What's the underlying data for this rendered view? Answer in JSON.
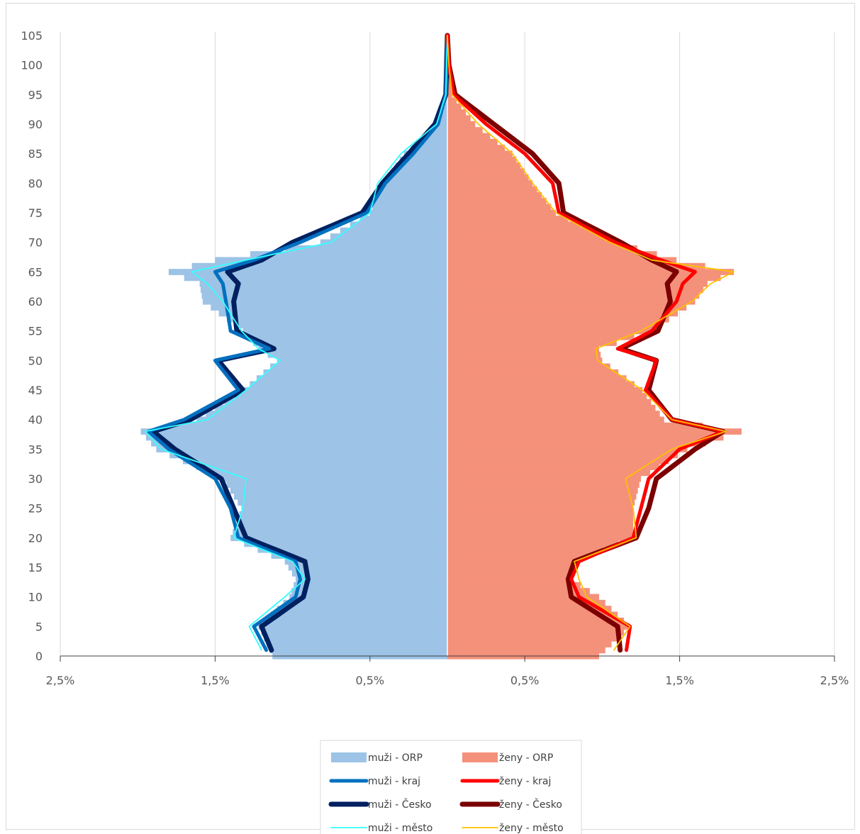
{
  "chart_data": {
    "type": "population-pyramid",
    "title": "",
    "xlabel": "",
    "ylabel": "",
    "xlim": [
      -2.5,
      2.5
    ],
    "ylim": [
      0,
      105
    ],
    "x_ticks": [
      -2.5,
      -1.5,
      -0.5,
      0.5,
      1.5,
      2.5
    ],
    "x_tick_labels": [
      "2,5%",
      "1,5%",
      "0,5%",
      "0,5%",
      "1,5%",
      "2,5%"
    ],
    "y_ticks": [
      0,
      5,
      10,
      15,
      20,
      25,
      30,
      35,
      40,
      45,
      50,
      55,
      60,
      65,
      70,
      75,
      80,
      85,
      90,
      95,
      100,
      105
    ],
    "y_tick_labels": [
      "0",
      "5",
      "10",
      "15",
      "20",
      "25",
      "30",
      "35",
      "40",
      "45",
      "50",
      "55",
      "60",
      "65",
      "70",
      "75",
      "80",
      "85",
      "90",
      "95",
      "100",
      "105"
    ],
    "grid": "vertical",
    "legend_placement": "bottom",
    "age_knots": [
      0,
      5,
      10,
      13,
      16,
      20,
      25,
      30,
      35,
      38,
      40,
      45,
      50,
      52,
      55,
      60,
      63,
      65,
      67,
      70,
      75,
      80,
      85,
      90,
      95,
      100,
      105
    ],
    "series": [
      {
        "name": "muži - ORP",
        "side": "left",
        "kind": "bar",
        "color": "#9dc3e6",
        "values": [
          1.13,
          1.22,
          1.02,
          0.98,
          1.05,
          1.4,
          1.33,
          1.45,
          1.88,
          1.98,
          1.62,
          1.32,
          1.1,
          1.22,
          1.32,
          1.58,
          1.6,
          1.8,
          1.5,
          0.82,
          0.5,
          0.42,
          0.28,
          0.07,
          0.01,
          0.005,
          0.0
        ]
      },
      {
        "name": "muži - kraj",
        "side": "left",
        "kind": "line",
        "color": "#0070c0",
        "values": [
          1.15,
          1.25,
          0.98,
          0.95,
          0.98,
          1.35,
          1.4,
          1.5,
          1.8,
          1.93,
          1.7,
          1.35,
          1.5,
          1.15,
          1.4,
          1.43,
          1.45,
          1.5,
          1.25,
          0.95,
          0.52,
          0.4,
          0.22,
          0.06,
          0.01,
          0.005,
          0.0
        ]
      },
      {
        "name": "muži - Česko",
        "side": "left",
        "kind": "line",
        "color": "#002060",
        "values": [
          1.12,
          1.2,
          0.93,
          0.9,
          0.92,
          1.3,
          1.38,
          1.46,
          1.76,
          1.9,
          1.66,
          1.32,
          1.48,
          1.12,
          1.36,
          1.38,
          1.35,
          1.42,
          1.2,
          1.0,
          0.55,
          0.42,
          0.25,
          0.08,
          0.01,
          0.005,
          0.0
        ]
      },
      {
        "name": "muži - město",
        "side": "left",
        "kind": "line",
        "color": "#33ffff",
        "values": [
          1.18,
          1.28,
          1.05,
          0.92,
          1.0,
          1.38,
          1.32,
          1.3,
          1.85,
          1.95,
          1.55,
          1.3,
          1.08,
          1.22,
          1.33,
          1.45,
          1.55,
          1.65,
          1.3,
          0.75,
          0.5,
          0.45,
          0.3,
          0.07,
          0.01,
          0.005,
          0.0
        ]
      },
      {
        "name": "ženy - ORP",
        "side": "right",
        "kind": "bar",
        "color": "#f4917b",
        "values": [
          0.98,
          1.18,
          0.98,
          0.8,
          0.82,
          1.2,
          1.2,
          1.25,
          1.55,
          1.9,
          1.4,
          1.26,
          1.0,
          0.98,
          1.32,
          1.6,
          1.68,
          1.85,
          1.48,
          1.1,
          0.7,
          0.55,
          0.42,
          0.18,
          0.03,
          0.01,
          0.0
        ]
      },
      {
        "name": "ženy - kraj",
        "side": "right",
        "kind": "line",
        "color": "#ff0000",
        "values": [
          1.15,
          1.18,
          0.85,
          0.8,
          0.85,
          1.2,
          1.25,
          1.3,
          1.5,
          1.78,
          1.45,
          1.28,
          1.35,
          1.1,
          1.32,
          1.48,
          1.52,
          1.6,
          1.38,
          1.08,
          0.72,
          0.68,
          0.5,
          0.25,
          0.04,
          0.01,
          0.0
        ]
      },
      {
        "name": "ženy - Česko",
        "side": "right",
        "kind": "line",
        "color": "#7b0000",
        "values": [
          1.12,
          1.1,
          0.8,
          0.78,
          0.82,
          1.22,
          1.3,
          1.35,
          1.6,
          1.78,
          1.45,
          1.3,
          1.35,
          1.12,
          1.36,
          1.44,
          1.42,
          1.48,
          1.32,
          1.12,
          0.75,
          0.72,
          0.55,
          0.3,
          0.05,
          0.01,
          0.0
        ]
      },
      {
        "name": "ženy - město",
        "side": "right",
        "kind": "line",
        "color": "#ffc000",
        "values": [
          1.05,
          1.18,
          0.9,
          0.85,
          0.82,
          1.22,
          1.2,
          1.15,
          1.45,
          1.8,
          1.45,
          1.26,
          0.97,
          0.96,
          1.25,
          1.58,
          1.7,
          1.85,
          1.32,
          1.05,
          0.7,
          0.55,
          0.42,
          0.2,
          0.03,
          0.01,
          0.0
        ]
      }
    ]
  }
}
